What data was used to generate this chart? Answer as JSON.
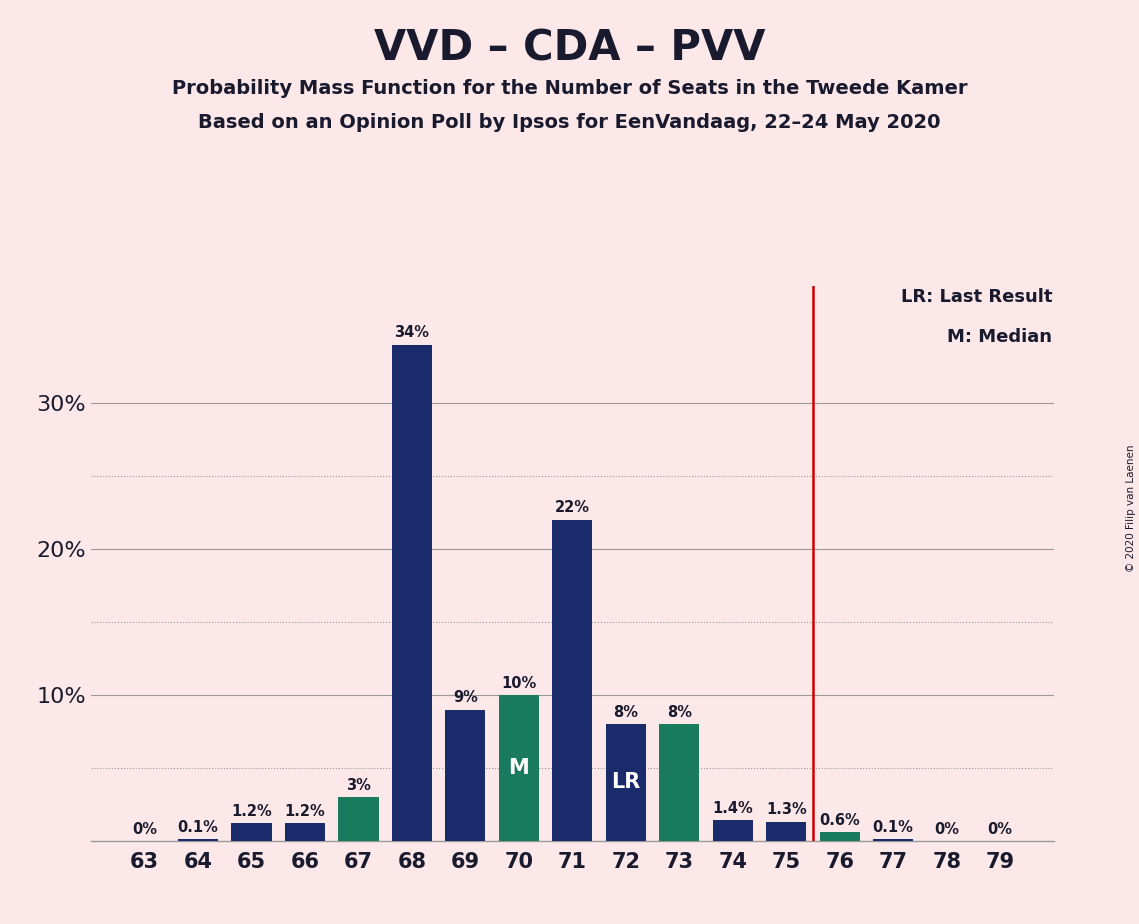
{
  "title": "VVD – CDA – PVV",
  "subtitle1": "Probability Mass Function for the Number of Seats in the Tweede Kamer",
  "subtitle2": "Based on an Opinion Poll by Ipsos for EenVandaag, 22–24 May 2020",
  "copyright": "© 2020 Filip van Laenen",
  "legend_lr": "LR: Last Result",
  "legend_m": "M: Median",
  "background_color": "#fce8e8",
  "bar_color_navy": "#1a2b6b",
  "bar_color_teal": "#1a7a5e",
  "vline_color": "#cc0000",
  "vline_x": 75.5,
  "seats": [
    63,
    64,
    65,
    66,
    67,
    68,
    69,
    70,
    71,
    72,
    73,
    74,
    75,
    76,
    77,
    78,
    79
  ],
  "values": [
    0.0,
    0.1,
    1.2,
    1.2,
    3.0,
    34.0,
    9.0,
    10.0,
    22.0,
    8.0,
    8.0,
    1.4,
    1.3,
    0.6,
    0.1,
    0.0,
    0.0
  ],
  "labels": [
    "0%",
    "0.1%",
    "1.2%",
    "1.2%",
    "3%",
    "34%",
    "9%",
    "10%",
    "22%",
    "8%",
    "8%",
    "1.4%",
    "1.3%",
    "0.6%",
    "0.1%",
    "0%",
    "0%"
  ],
  "colors": [
    "navy",
    "navy",
    "navy",
    "navy",
    "teal",
    "navy",
    "navy",
    "teal",
    "navy",
    "navy",
    "teal",
    "navy",
    "navy",
    "teal",
    "navy",
    "navy",
    "navy"
  ],
  "median_seat": 70,
  "lr_seat": 72,
  "yticks": [
    10,
    20,
    30
  ],
  "grid_solid": [
    10,
    20,
    30
  ],
  "grid_dotted": [
    5,
    15,
    25
  ],
  "ylim": [
    0,
    38
  ],
  "xlim": [
    62.0,
    80.0
  ]
}
